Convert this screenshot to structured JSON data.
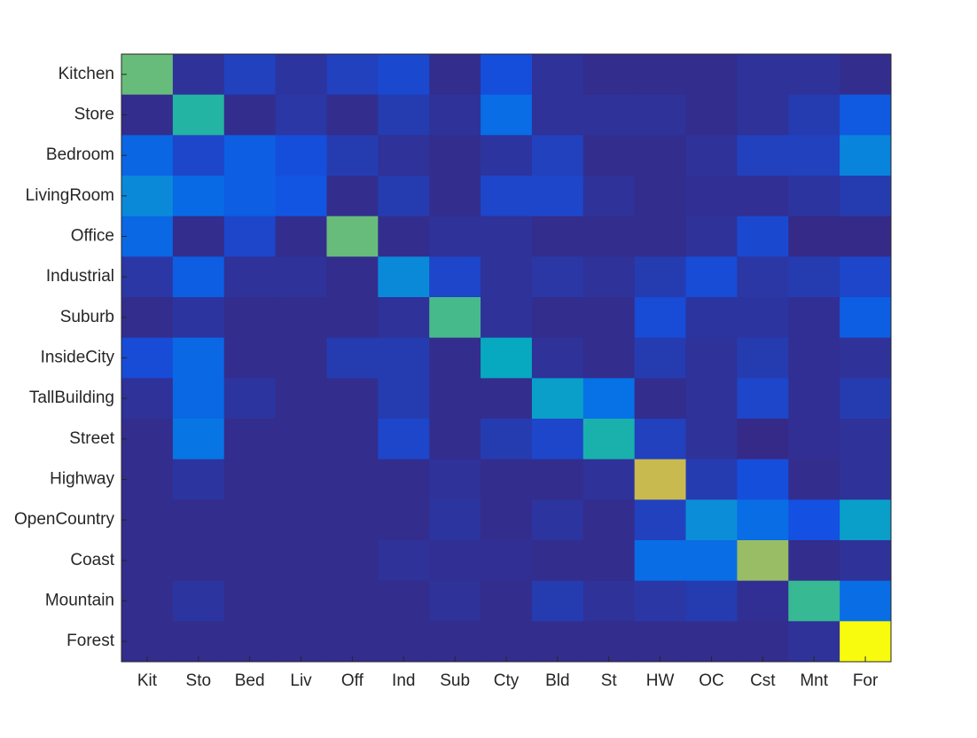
{
  "chart_data": {
    "type": "heatmap",
    "colormap": "parula",
    "xcategories": [
      "Kit",
      "Sto",
      "Bed",
      "Liv",
      "Off",
      "Ind",
      "Sub",
      "Cty",
      "Bld",
      "St",
      "HW",
      "OC",
      "Cst",
      "Mnt",
      "For"
    ],
    "ycategories": [
      "Kitchen",
      "Store",
      "Bedroom",
      "LivingRoom",
      "Office",
      "Industrial",
      "Suburb",
      "InsideCity",
      "TallBuilding",
      "Street",
      "Highway",
      "OpenCountry",
      "Coast",
      "Mountain",
      "Forest"
    ],
    "values": [
      [
        0.72,
        0.04,
        0.1,
        0.05,
        0.1,
        0.13,
        0.02,
        0.15,
        0.04,
        0.02,
        0.02,
        0.02,
        0.04,
        0.04,
        0.02
      ],
      [
        0.02,
        0.62,
        0.02,
        0.06,
        0.02,
        0.08,
        0.04,
        0.28,
        0.04,
        0.04,
        0.04,
        0.02,
        0.04,
        0.08,
        0.2
      ],
      [
        0.25,
        0.12,
        0.22,
        0.15,
        0.08,
        0.04,
        0.02,
        0.05,
        0.1,
        0.02,
        0.02,
        0.04,
        0.1,
        0.1,
        0.38
      ],
      [
        0.4,
        0.27,
        0.22,
        0.18,
        0.02,
        0.08,
        0.02,
        0.12,
        0.12,
        0.04,
        0.02,
        0.03,
        0.03,
        0.05,
        0.08
      ],
      [
        0.26,
        0.02,
        0.12,
        0.02,
        0.72,
        0.02,
        0.04,
        0.04,
        0.02,
        0.02,
        0.02,
        0.04,
        0.13,
        0.01,
        0.01
      ],
      [
        0.06,
        0.22,
        0.04,
        0.04,
        0.02,
        0.4,
        0.12,
        0.04,
        0.06,
        0.04,
        0.08,
        0.14,
        0.06,
        0.08,
        0.12
      ],
      [
        0.02,
        0.05,
        0.02,
        0.02,
        0.02,
        0.04,
        0.68,
        0.04,
        0.02,
        0.02,
        0.14,
        0.05,
        0.05,
        0.03,
        0.22
      ],
      [
        0.14,
        0.26,
        0.02,
        0.02,
        0.08,
        0.08,
        0.02,
        0.55,
        0.04,
        0.02,
        0.08,
        0.04,
        0.08,
        0.03,
        0.04
      ],
      [
        0.04,
        0.26,
        0.05,
        0.02,
        0.02,
        0.08,
        0.02,
        0.02,
        0.5,
        0.3,
        0.02,
        0.04,
        0.12,
        0.03,
        0.08
      ],
      [
        0.02,
        0.32,
        0.02,
        0.02,
        0.02,
        0.12,
        0.02,
        0.08,
        0.12,
        0.6,
        0.1,
        0.04,
        0.01,
        0.03,
        0.04
      ],
      [
        0.02,
        0.05,
        0.02,
        0.02,
        0.02,
        0.02,
        0.04,
        0.02,
        0.02,
        0.04,
        0.84,
        0.08,
        0.15,
        0.02,
        0.04
      ],
      [
        0.02,
        0.02,
        0.02,
        0.02,
        0.02,
        0.02,
        0.05,
        0.02,
        0.05,
        0.02,
        0.1,
        0.42,
        0.28,
        0.16,
        0.5
      ],
      [
        0.02,
        0.02,
        0.02,
        0.02,
        0.02,
        0.04,
        0.03,
        0.03,
        0.02,
        0.02,
        0.28,
        0.28,
        0.78,
        0.02,
        0.04
      ],
      [
        0.02,
        0.05,
        0.02,
        0.02,
        0.02,
        0.02,
        0.04,
        0.02,
        0.08,
        0.04,
        0.06,
        0.08,
        0.03,
        0.66,
        0.28
      ],
      [
        0.02,
        0.02,
        0.02,
        0.02,
        0.02,
        0.02,
        0.02,
        0.02,
        0.02,
        0.02,
        0.02,
        0.02,
        0.02,
        0.04,
        1.0
      ]
    ]
  }
}
